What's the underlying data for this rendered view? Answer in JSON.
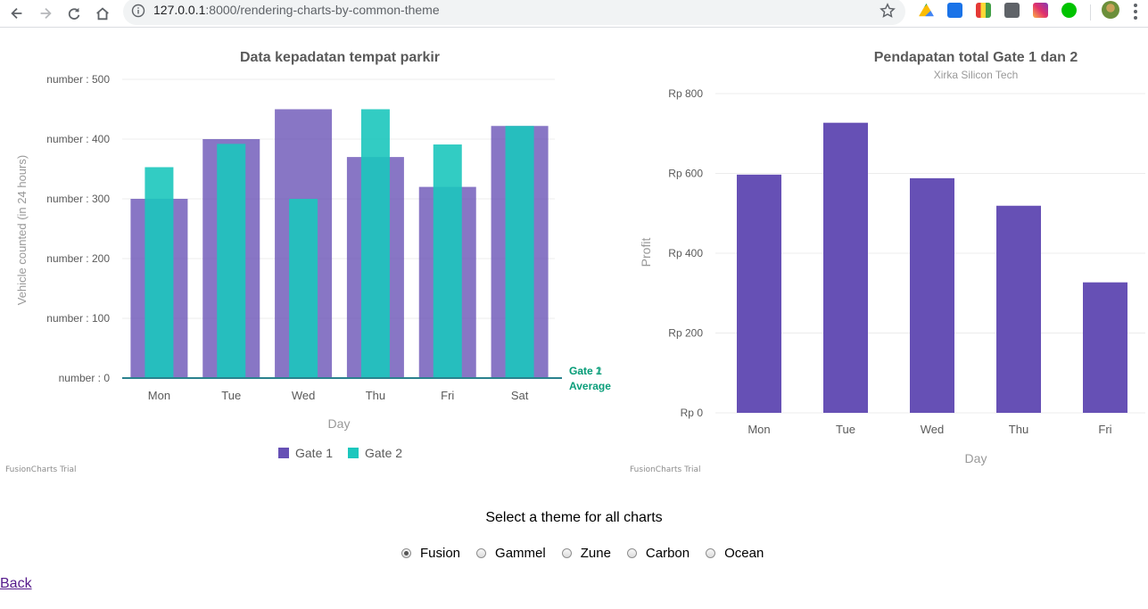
{
  "browser": {
    "url_host": "127.0.0.1",
    "url_path": ":8000/rendering-charts-by-common-theme"
  },
  "chart_data": [
    {
      "type": "bar",
      "title": "Data kepadatan tempat parkir",
      "xlabel": "Day",
      "ylabel": "Vehicle counted (in 24 hours)",
      "categories": [
        "Mon",
        "Tue",
        "Wed",
        "Thu",
        "Fri",
        "Sat"
      ],
      "series": [
        {
          "name": "Gate 1",
          "color": "#6650b5",
          "values": [
            300,
            400,
            450,
            370,
            320,
            422
          ]
        },
        {
          "name": "Gate 2",
          "color": "#1cc7bd",
          "values": [
            353,
            392,
            300,
            450,
            391,
            422
          ]
        }
      ],
      "ylim": [
        0,
        500
      ],
      "yticks": [
        0,
        100,
        200,
        300,
        400,
        500
      ],
      "ytick_prefix": "number : ",
      "trendline_labels": [
        "Gate 1",
        "Gate 2",
        "Average"
      ],
      "trendline_color": "#0a9e7a",
      "legend": "bottom-center",
      "trial_text": "FusionCharts Trial"
    },
    {
      "type": "bar",
      "title": "Pendapatan total Gate 1 dan 2",
      "subtitle": "Xirka Silicon Tech",
      "xlabel": "Day",
      "ylabel": "Profit",
      "categories": [
        "Mon",
        "Tue",
        "Wed",
        "Thu",
        "Fri"
      ],
      "values": [
        597,
        727,
        588,
        519,
        327
      ],
      "color": "#6650b5",
      "ylim": [
        0,
        800
      ],
      "yticks": [
        0,
        200,
        400,
        600,
        800
      ],
      "ytick_prefix": "Rp ",
      "trial_text": "FusionCharts Trial"
    }
  ],
  "theme_selector": {
    "title": "Select a theme for all charts",
    "options": [
      "Fusion",
      "Gammel",
      "Zune",
      "Carbon",
      "Ocean"
    ],
    "selected": "Fusion"
  },
  "back_link": "Back"
}
